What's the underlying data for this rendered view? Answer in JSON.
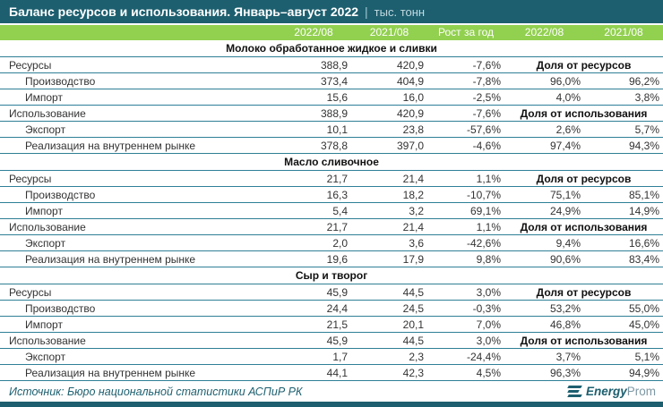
{
  "title": {
    "text": "Баланс ресурсов и использования. Январь–август 2022",
    "separator": "|",
    "unit": "тыс. тонн"
  },
  "colors": {
    "dark_teal": "#1d5f6f",
    "header_green": "#92d050",
    "row_line": "#2e7f96"
  },
  "chart_data": {
    "type": "table",
    "title": "Баланс ресурсов и использования. Январь–август 2022 | тыс. тонн",
    "columns": [
      "2022/08",
      "2021/08",
      "Рост за год",
      "2022/08",
      "2021/08"
    ],
    "sections": [
      {
        "title": "Молоко обработанное жидкое и сливки",
        "rows": [
          {
            "label": "Ресурсы",
            "indent": 0,
            "values": [
              "388,9",
              "420,9",
              "-7,6%"
            ],
            "share_label": "Доля от ресурсов"
          },
          {
            "label": "Производство",
            "indent": 1,
            "values": [
              "373,4",
              "404,9",
              "-7,8%"
            ],
            "shares": [
              "96,0%",
              "96,2%"
            ]
          },
          {
            "label": "Импорт",
            "indent": 1,
            "values": [
              "15,6",
              "16,0",
              "-2,5%"
            ],
            "shares": [
              "4,0%",
              "3,8%"
            ]
          },
          {
            "label": "Использование",
            "indent": 0,
            "values": [
              "388,9",
              "420,9",
              "-7,6%"
            ],
            "share_label": "Доля от использования"
          },
          {
            "label": "Экспорт",
            "indent": 1,
            "values": [
              "10,1",
              "23,8",
              "-57,6%"
            ],
            "shares": [
              "2,6%",
              "5,7%"
            ]
          },
          {
            "label": "Реализация на внутреннем рынке",
            "indent": 1,
            "values": [
              "378,8",
              "397,0",
              "-4,6%"
            ],
            "shares": [
              "97,4%",
              "94,3%"
            ]
          }
        ]
      },
      {
        "title": "Масло сливочное",
        "rows": [
          {
            "label": "Ресурсы",
            "indent": 0,
            "values": [
              "21,7",
              "21,4",
              "1,1%"
            ],
            "share_label": "Доля от ресурсов"
          },
          {
            "label": "Производство",
            "indent": 1,
            "values": [
              "16,3",
              "18,2",
              "-10,7%"
            ],
            "shares": [
              "75,1%",
              "85,1%"
            ]
          },
          {
            "label": "Импорт",
            "indent": 1,
            "values": [
              "5,4",
              "3,2",
              "69,1%"
            ],
            "shares": [
              "24,9%",
              "14,9%"
            ]
          },
          {
            "label": "Использование",
            "indent": 0,
            "values": [
              "21,7",
              "21,4",
              "1,1%"
            ],
            "share_label": "Доля от использования"
          },
          {
            "label": "Экспорт",
            "indent": 1,
            "values": [
              "2,0",
              "3,6",
              "-42,6%"
            ],
            "shares": [
              "9,4%",
              "16,6%"
            ]
          },
          {
            "label": "Реализация на внутреннем рынке",
            "indent": 1,
            "values": [
              "19,6",
              "17,9",
              "9,8%"
            ],
            "shares": [
              "90,6%",
              "83,4%"
            ]
          }
        ]
      },
      {
        "title": "Сыр и творог",
        "rows": [
          {
            "label": "Ресурсы",
            "indent": 0,
            "values": [
              "45,9",
              "44,5",
              "3,0%"
            ],
            "share_label": "Доля от ресурсов"
          },
          {
            "label": "Производство",
            "indent": 1,
            "values": [
              "24,4",
              "24,5",
              "-0,3%"
            ],
            "shares": [
              "53,2%",
              "55,0%"
            ]
          },
          {
            "label": "Импорт",
            "indent": 1,
            "values": [
              "21,5",
              "20,1",
              "7,0%"
            ],
            "shares": [
              "46,8%",
              "45,0%"
            ]
          },
          {
            "label": "Использование",
            "indent": 0,
            "values": [
              "45,9",
              "44,5",
              "3,0%"
            ],
            "share_label": "Доля от использования"
          },
          {
            "label": "Экспорт",
            "indent": 1,
            "values": [
              "1,7",
              "2,3",
              "-24,4%"
            ],
            "shares": [
              "3,7%",
              "5,1%"
            ]
          },
          {
            "label": "Реализация на внутреннем рынке",
            "indent": 1,
            "values": [
              "44,1",
              "42,3",
              "4,5%"
            ],
            "shares": [
              "96,3%",
              "94,9%"
            ]
          }
        ]
      }
    ]
  },
  "footer": {
    "source": "Источник: Бюро национальной статистики АСПиР РК",
    "logo": {
      "icon": "energyprom-logo",
      "bold": "Energy",
      "light": "Prom"
    }
  }
}
